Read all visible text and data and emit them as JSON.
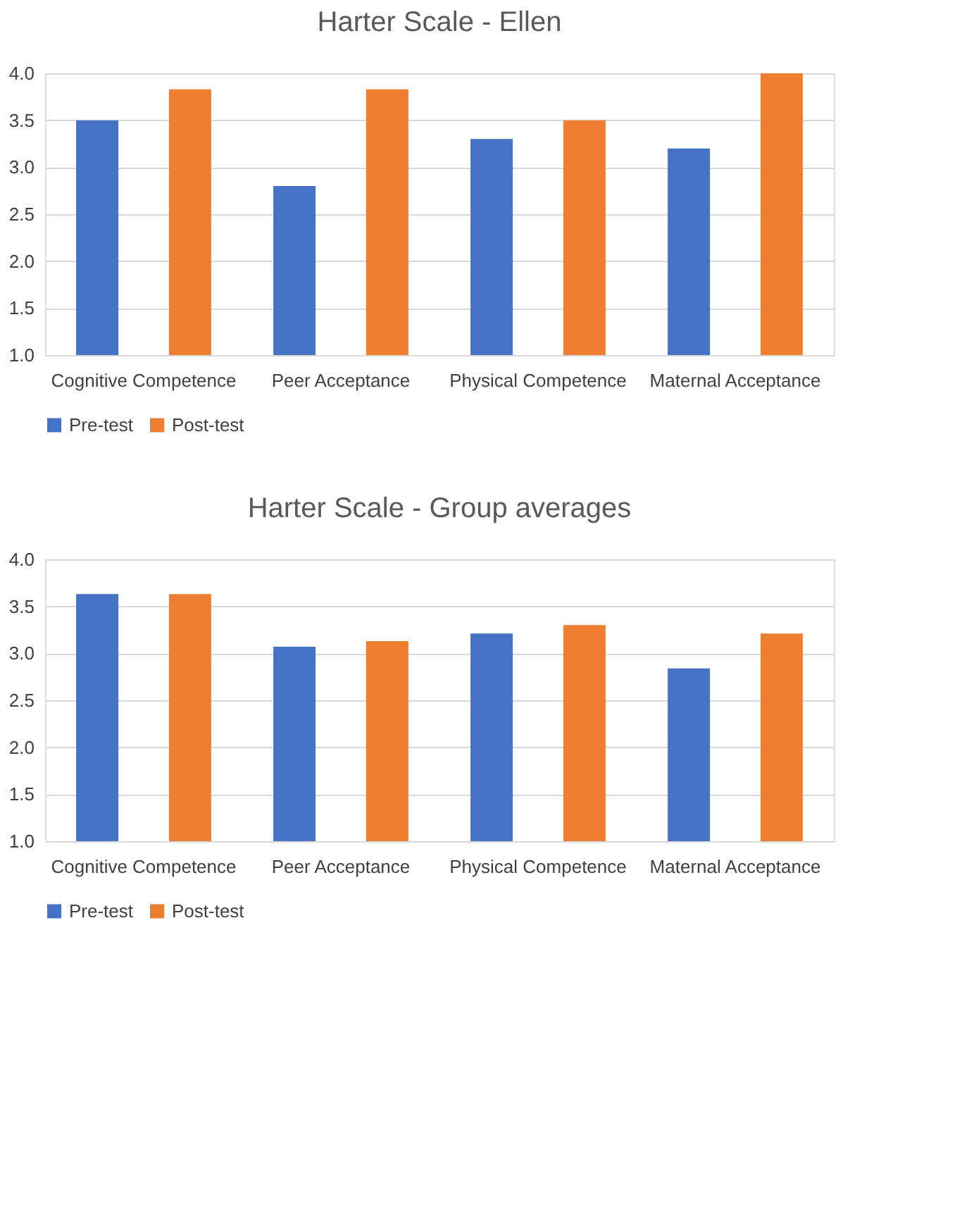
{
  "chart_data": [
    {
      "type": "bar",
      "title": "Harter Scale - Ellen",
      "categories": [
        "Cognitive Competence",
        "Peer Acceptance",
        "Physical Competence",
        "Maternal Acceptance"
      ],
      "series": [
        {
          "name": "Pre-test",
          "color": "#4472c4",
          "values": [
            3.5,
            2.8,
            3.3,
            3.2
          ]
        },
        {
          "name": "Post-test",
          "color": "#ed7d31",
          "values": [
            3.83,
            3.83,
            3.5,
            4.0
          ]
        }
      ],
      "ylim": [
        1.0,
        4.0
      ],
      "yticks": [
        {
          "value": 1,
          "label": "1.0"
        },
        {
          "value": 1.5,
          "label": "1.5"
        },
        {
          "value": 2,
          "label": "2.0"
        },
        {
          "value": 2.5,
          "label": "2.5"
        },
        {
          "value": 3,
          "label": "3.0"
        },
        {
          "value": 3.5,
          "label": "3.5"
        },
        {
          "value": 4,
          "label": "4.0"
        }
      ],
      "grid": "y",
      "legend": "bottom"
    },
    {
      "type": "bar",
      "title": "Harter Scale - Group averages",
      "categories": [
        "Cognitive Competence",
        "Peer Acceptance",
        "Physical Competence",
        "Maternal Acceptance"
      ],
      "series": [
        {
          "name": "Pre-test",
          "color": "#4472c4",
          "values": [
            3.63,
            3.07,
            3.21,
            2.84
          ]
        },
        {
          "name": "Post-test",
          "color": "#ed7d31",
          "values": [
            3.63,
            3.13,
            3.3,
            3.21
          ]
        }
      ],
      "ylim": [
        1.0,
        4.0
      ],
      "yticks": [
        {
          "value": 1,
          "label": "1.0"
        },
        {
          "value": 1.5,
          "label": "1.5"
        },
        {
          "value": 2,
          "label": "2.0"
        },
        {
          "value": 2.5,
          "label": "2.5"
        },
        {
          "value": 3,
          "label": "3.0"
        },
        {
          "value": 3.5,
          "label": "3.5"
        },
        {
          "value": 4,
          "label": "4.0"
        }
      ],
      "grid": "y",
      "legend": "bottom"
    }
  ]
}
